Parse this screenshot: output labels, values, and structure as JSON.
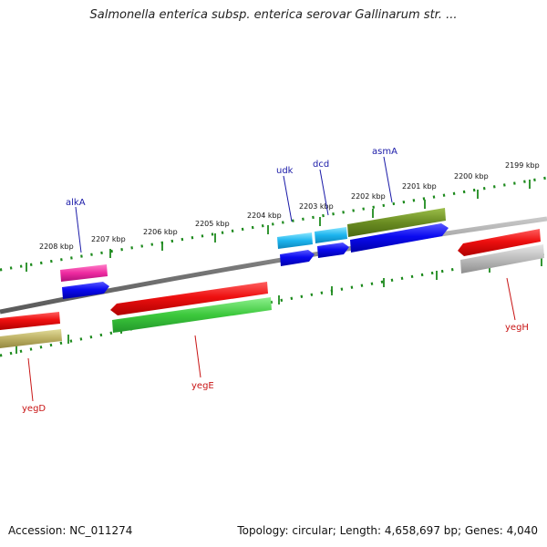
{
  "header": {
    "title": "Salmonella enterica subsp. enterica serovar Gallinarum str. ..."
  },
  "footer": {
    "accession": "Accession: NC_011274",
    "summary": "Topology: circular; Length: 4,658,697 bp; Genes: 4,040"
  },
  "colors": {
    "backbone": "#8a8a8a",
    "tick": "#1d8a1d",
    "label_forward": "#1a1aa8",
    "label_reverse": "#c81414"
  },
  "ticks": [
    "2208 kbp",
    "2207 kbp",
    "2206 kbp",
    "2205 kbp",
    "2204 kbp",
    "2203 kbp",
    "2202 kbp",
    "2201 kbp",
    "2200 kbp",
    "2199 kbp"
  ],
  "genes": {
    "alkA": "alkA",
    "udk": "udk",
    "dcd": "dcd",
    "asmA": "asmA",
    "yegD": "yegD",
    "yegE": "yegE",
    "yegH": "yegH"
  }
}
